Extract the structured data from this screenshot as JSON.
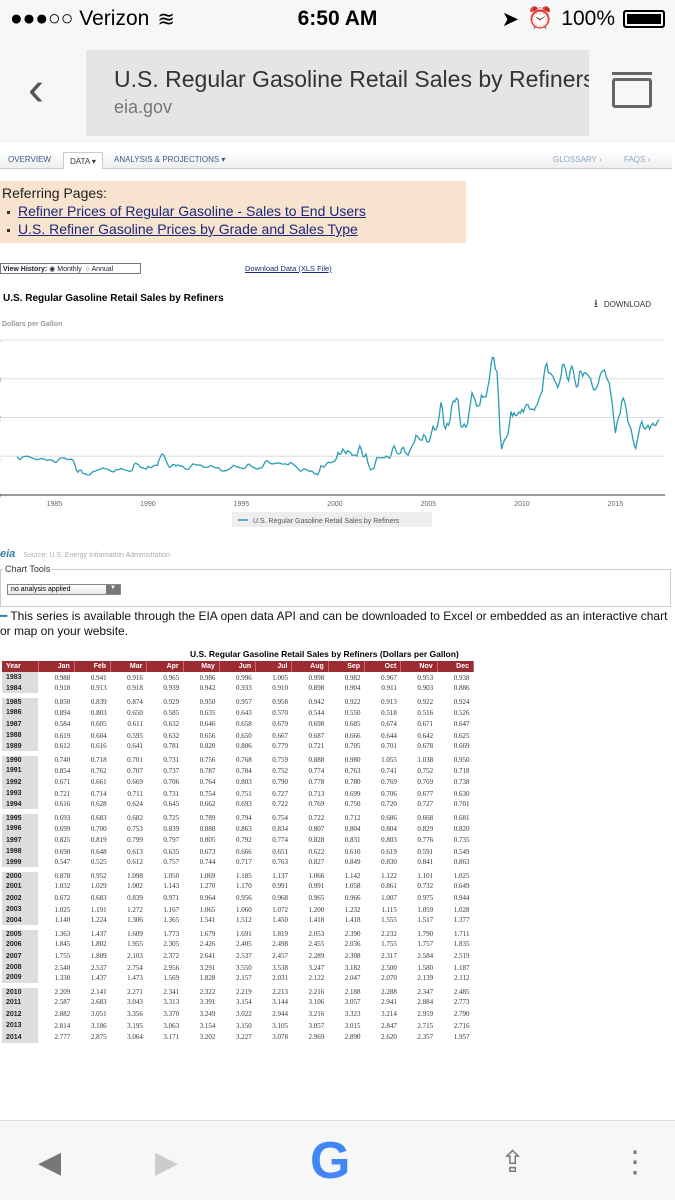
{
  "status": {
    "carrier": "●●●○○ Verizon",
    "time": "6:50 AM",
    "battery": "100%"
  },
  "browser": {
    "page_title": "U.S. Regular Gasoline Retail Sales by Refiners",
    "domain": "eia.gov"
  },
  "nav": {
    "overview": "OVERVIEW",
    "data": "DATA ▾",
    "analysis": "ANALYSIS & PROJECTIONS ▾",
    "glossary": "GLOSSARY ›",
    "faqs": "FAQS ›"
  },
  "referring": {
    "heading": "Referring Pages:",
    "links": [
      "Refiner Prices of Regular Gasoline - Sales to End Users",
      "U.S. Refiner Gasoline Prices by Grade and Sales Type"
    ]
  },
  "view_history": {
    "label": "View History:",
    "monthly": "Monthly",
    "annual": "Annual",
    "selected": "Monthly"
  },
  "download_data": "Download Data (XLS File)",
  "chart_data": {
    "type": "line",
    "title": "U.S. Regular Gasoline Retail Sales by Refiners",
    "ylabel": "Dollars per Gallon",
    "ylim": [
      0,
      4
    ],
    "yticks": [
      "0",
      "1",
      "2",
      "3",
      "4"
    ],
    "xticks": [
      "1985",
      "1990",
      "1995",
      "2000",
      "2005",
      "2010",
      "2015"
    ],
    "xlim": [
      1983,
      2017.5
    ],
    "legend": "U.S. Regular Gasoline Retail Sales by Refiners",
    "legend_position": "bottom",
    "download_label": "DOWNLOAD",
    "color": "#2a9db5",
    "series_start": "1983-01",
    "values_after_2014_approx": [
      1.6,
      1.85,
      2.0,
      2.1,
      2.4,
      2.5,
      2.4,
      2.2,
      1.9,
      1.8,
      1.7,
      1.5,
      1.3,
      1.2,
      1.4,
      1.6,
      1.8,
      1.9,
      1.75,
      1.7,
      1.75,
      1.8,
      1.7,
      1.8,
      1.85,
      1.8,
      1.8,
      1.9,
      1.95
    ]
  },
  "source": "Source: U.S. Energy Information Administration",
  "chart_tools": {
    "legend": "Chart Tools",
    "select_value": "no analysis applied"
  },
  "api_note": "This series is available through the EIA open data API and can be downloaded to Excel or embedded as an interactive chart or map on your website.",
  "table": {
    "title": "U.S. Regular Gasoline Retail Sales by Refiners (Dollars per Gallon)",
    "headers": [
      "Year",
      "Jan",
      "Feb",
      "Mar",
      "Apr",
      "May",
      "Jun",
      "Jul",
      "Aug",
      "Sep",
      "Oct",
      "Nov",
      "Dec"
    ],
    "rows": [
      [
        "1983",
        "0.988",
        "0.941",
        "0.916",
        "0.965",
        "0.986",
        "0.996",
        "1.005",
        "0.998",
        "0.982",
        "0.967",
        "0.953",
        "0.938"
      ],
      [
        "1984",
        "0.918",
        "0.913",
        "0.918",
        "0.939",
        "0.942",
        "0.933",
        "0.910",
        "0.898",
        "0.904",
        "0.911",
        "0.903",
        "0.886"
      ],
      [
        "1985",
        "0.850",
        "0.839",
        "0.874",
        "0.929",
        "0.950",
        "0.957",
        "0.958",
        "0.942",
        "0.922",
        "0.913",
        "0.922",
        "0.924"
      ],
      [
        "1986",
        "0.894",
        "0.803",
        "0.650",
        "0.585",
        "0.635",
        "0.643",
        "0.570",
        "0.544",
        "0.550",
        "0.518",
        "0.516",
        "0.526"
      ],
      [
        "1987",
        "0.584",
        "0.605",
        "0.611",
        "0.632",
        "0.646",
        "0.658",
        "0.679",
        "0.698",
        "0.685",
        "0.674",
        "0.671",
        "0.647"
      ],
      [
        "1988",
        "0.619",
        "0.604",
        "0.595",
        "0.632",
        "0.656",
        "0.650",
        "0.667",
        "0.687",
        "0.666",
        "0.644",
        "0.642",
        "0.625"
      ],
      [
        "1989",
        "0.612",
        "0.616",
        "0.641",
        "0.781",
        "0.820",
        "0.806",
        "0.779",
        "0.721",
        "0.705",
        "0.701",
        "0.678",
        "0.669"
      ],
      [
        "1990",
        "0.740",
        "0.718",
        "0.701",
        "0.731",
        "0.756",
        "0.768",
        "0.759",
        "0.888",
        "0.980",
        "1.055",
        "1.038",
        "0.950"
      ],
      [
        "1991",
        "0.854",
        "0.762",
        "0.707",
        "0.737",
        "0.787",
        "0.784",
        "0.752",
        "0.774",
        "0.763",
        "0.741",
        "0.752",
        "0.718"
      ],
      [
        "1992",
        "0.671",
        "0.661",
        "0.669",
        "0.706",
        "0.764",
        "0.803",
        "0.790",
        "0.778",
        "0.780",
        "0.769",
        "0.769",
        "0.738"
      ],
      [
        "1993",
        "0.721",
        "0.714",
        "0.711",
        "0.731",
        "0.754",
        "0.751",
        "0.727",
        "0.713",
        "0.699",
        "0.706",
        "0.677",
        "0.630"
      ],
      [
        "1994",
        "0.616",
        "0.628",
        "0.624",
        "0.645",
        "0.662",
        "0.693",
        "0.722",
        "0.769",
        "0.750",
        "0.720",
        "0.727",
        "0.701"
      ],
      [
        "1995",
        "0.693",
        "0.683",
        "0.682",
        "0.725",
        "0.789",
        "0.794",
        "0.754",
        "0.722",
        "0.712",
        "0.686",
        "0.668",
        "0.681"
      ],
      [
        "1996",
        "0.699",
        "0.700",
        "0.753",
        "0.839",
        "0.888",
        "0.863",
        "0.834",
        "0.807",
        "0.804",
        "0.804",
        "0.829",
        "0.820"
      ],
      [
        "1997",
        "0.825",
        "0.819",
        "0.799",
        "0.797",
        "0.805",
        "0.792",
        "0.774",
        "0.828",
        "0.831",
        "0.803",
        "0.776",
        "0.735"
      ],
      [
        "1998",
        "0.690",
        "0.648",
        "0.613",
        "0.635",
        "0.673",
        "0.666",
        "0.651",
        "0.622",
        "0.610",
        "0.619",
        "0.591",
        "0.549"
      ],
      [
        "1999",
        "0.547",
        "0.525",
        "0.612",
        "0.757",
        "0.744",
        "0.717",
        "0.763",
        "0.827",
        "0.849",
        "0.830",
        "0.841",
        "0.863"
      ],
      [
        "2000",
        "0.878",
        "0.952",
        "1.098",
        "1.050",
        "1.069",
        "1.185",
        "1.137",
        "1.066",
        "1.142",
        "1.122",
        "1.101",
        "1.025"
      ],
      [
        "2001",
        "1.032",
        "1.029",
        "1.002",
        "1.143",
        "1.270",
        "1.170",
        "0.991",
        "0.991",
        "1.058",
        "0.861",
        "0.732",
        "0.649"
      ],
      [
        "2002",
        "0.672",
        "0.683",
        "0.839",
        "0.971",
        "0.964",
        "0.956",
        "0.968",
        "0.965",
        "0.966",
        "1.007",
        "0.975",
        "0.944"
      ],
      [
        "2003",
        "1.025",
        "1.191",
        "1.272",
        "1.167",
        "1.065",
        "1.060",
        "1.072",
        "1.200",
        "1.232",
        "1.115",
        "1.059",
        "1.028"
      ],
      [
        "2004",
        "1.140",
        "1.224",
        "1.306",
        "1.365",
        "1.541",
        "1.512",
        "1.450",
        "1.418",
        "1.418",
        "1.555",
        "1.517",
        "1.377"
      ],
      [
        "2005",
        "1.363",
        "1.437",
        "1.609",
        "1.773",
        "1.679",
        "1.691",
        "1.819",
        "2.053",
        "2.390",
        "2.232",
        "1.790",
        "1.711"
      ],
      [
        "2006",
        "1.845",
        "1.802",
        "1.955",
        "2.305",
        "2.426",
        "2.405",
        "2.498",
        "2.455",
        "2.036",
        "1.755",
        "1.757",
        "1.835"
      ],
      [
        "2007",
        "1.755",
        "1.809",
        "2.103",
        "2.372",
        "2.641",
        "2.537",
        "2.457",
        "2.289",
        "2.308",
        "2.317",
        "2.584",
        "2.519"
      ],
      [
        "2008",
        "2.540",
        "2.537",
        "2.754",
        "2.956",
        "3.291",
        "3.550",
        "3.538",
        "3.247",
        "3.182",
        "2.500",
        "1.580",
        "1.187"
      ],
      [
        "2009",
        "1.330",
        "1.437",
        "1.473",
        "1.569",
        "1.828",
        "2.157",
        "2.031",
        "2.122",
        "2.047",
        "2.070",
        "2.139",
        "2.112"
      ],
      [
        "2010",
        "2.209",
        "2.141",
        "2.271",
        "2.341",
        "2.322",
        "2.219",
        "2.213",
        "2.216",
        "2.188",
        "2.288",
        "2.347",
        "2.485"
      ],
      [
        "2011",
        "2.587",
        "2.683",
        "3.043",
        "3.313",
        "3.391",
        "3.154",
        "3.144",
        "3.106",
        "3.057",
        "2.941",
        "2.884",
        "2.773"
      ],
      [
        "2012",
        "2.882",
        "3.051",
        "3.356",
        "3.370",
        "3.249",
        "3.022",
        "2.944",
        "3.216",
        "3.323",
        "3.214",
        "2.959",
        "2.790"
      ],
      [
        "2013",
        "2.814",
        "3.186",
        "3.195",
        "3.063",
        "3.154",
        "3.150",
        "3.105",
        "3.057",
        "3.015",
        "2.847",
        "2.715",
        "2.716"
      ],
      [
        "2014",
        "2.777",
        "2.875",
        "3.064",
        "3.171",
        "3.202",
        "3.227",
        "3.078",
        "2.969",
        "2.890",
        "2.620",
        "2.357",
        "1.957"
      ]
    ]
  }
}
